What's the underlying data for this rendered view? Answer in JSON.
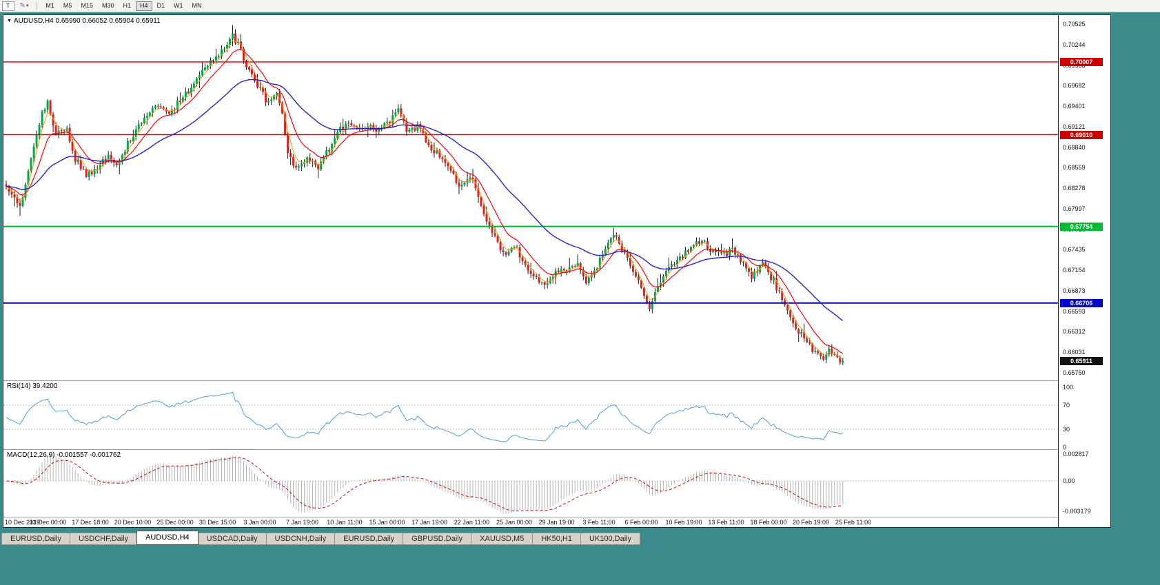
{
  "toolbar": {
    "t_button": "T",
    "pen_icon": "✎",
    "caret_icon": "▾",
    "timeframes": [
      "M1",
      "M5",
      "M15",
      "M30",
      "H1",
      "H4",
      "D1",
      "W1",
      "MN"
    ],
    "active_timeframe": "H4"
  },
  "chart": {
    "title_marker": "▼",
    "title": "AUDUSD,H4 0.65990 0.66052 0.65904 0.65911",
    "price_ticks": [
      "0.70525",
      "0.70244",
      "0.69963",
      "0.69682",
      "0.69401",
      "0.69121",
      "0.68840",
      "0.68559",
      "0.68278",
      "0.67997",
      "0.67716",
      "0.67435",
      "0.67154",
      "0.66873",
      "0.66593",
      "0.66312",
      "0.66031",
      "0.65750"
    ],
    "levels": [
      {
        "price": 0.70007,
        "label": "0.70007",
        "color": "#cc0000",
        "width": 1.4
      },
      {
        "price": 0.6901,
        "label": "0.69010",
        "color": "#cc0000",
        "width": 1.4
      },
      {
        "price": 0.67754,
        "label": "0.67754",
        "color": "#00bb33",
        "width": 2
      },
      {
        "price": 0.66706,
        "label": "0.66706",
        "color": "#0000cc",
        "width": 2
      }
    ],
    "current_price": {
      "label": "0.65911",
      "value": 0.65911
    }
  },
  "rsi": {
    "title": "RSI(14) 39.4200",
    "ticks": [
      "100",
      "70",
      "30",
      "0"
    ],
    "levels": [
      70,
      30
    ],
    "last_value": 39.42
  },
  "macd": {
    "title": "MACD(12,26,9) -0.001557 -0.001762",
    "ticks": [
      "0.002817",
      "0.00",
      "-0.003179"
    ],
    "last_main": -0.001557,
    "last_signal": -0.001762
  },
  "tabs": [
    {
      "label": "EURUSD,Daily",
      "active": false
    },
    {
      "label": "USDCHF,Daily",
      "active": false
    },
    {
      "label": "AUDUSD,H4",
      "active": true
    },
    {
      "label": "USDCAD,Daily",
      "active": false
    },
    {
      "label": "USDCNH,Daily",
      "active": false
    },
    {
      "label": "EURUSD,Daily",
      "active": false
    },
    {
      "label": "GBPUSD,Daily",
      "active": false
    },
    {
      "label": "XAUUSD,M5",
      "active": false
    },
    {
      "label": "HK50,H1",
      "active": false
    },
    {
      "label": "UK100,Daily",
      "active": false
    }
  ],
  "colors": {
    "bull": "#00a94f",
    "bear": "#e02020",
    "wick": "#1a1a1a",
    "rsi_line": "#4a9ede",
    "macd_hist": "#b4b4b4",
    "macd_signal": "#e00000",
    "current_badge": "#111111",
    "background_teal": "#3a8b8b"
  },
  "chart_data": {
    "type": "candlestick",
    "symbol": "AUDUSD",
    "timeframe": "H4",
    "last_ohlc": {
      "open": "0.65990",
      "high": "0.66052",
      "low": "0.65904",
      "close": "0.65911"
    },
    "price_axis_range": [
      0.6575,
      0.70525
    ],
    "candle_count": 304,
    "horizontal_levels": [
      0.70007,
      0.6901,
      0.67754,
      0.66706
    ],
    "price_path": [
      [
        0,
        0.6828
      ],
      [
        3,
        0.6812
      ],
      [
        5,
        0.68
      ],
      [
        9,
        0.6872
      ],
      [
        13,
        0.6928
      ],
      [
        15,
        0.6945
      ],
      [
        18,
        0.6902
      ],
      [
        22,
        0.6908
      ],
      [
        25,
        0.6868
      ],
      [
        29,
        0.6846
      ],
      [
        33,
        0.6856
      ],
      [
        37,
        0.6872
      ],
      [
        40,
        0.6856
      ],
      [
        44,
        0.689
      ],
      [
        48,
        0.6912
      ],
      [
        52,
        0.6934
      ],
      [
        55,
        0.694
      ],
      [
        59,
        0.6926
      ],
      [
        63,
        0.695
      ],
      [
        67,
        0.6962
      ],
      [
        70,
        0.6986
      ],
      [
        74,
        0.7002
      ],
      [
        78,
        0.7016
      ],
      [
        82,
        0.7036
      ],
      [
        84,
        0.7026
      ],
      [
        87,
        0.6996
      ],
      [
        90,
        0.6976
      ],
      [
        94,
        0.6948
      ],
      [
        98,
        0.6956
      ],
      [
        100,
        0.693
      ],
      [
        102,
        0.6872
      ],
      [
        105,
        0.6856
      ],
      [
        109,
        0.6866
      ],
      [
        113,
        0.6856
      ],
      [
        117,
        0.6882
      ],
      [
        120,
        0.6906
      ],
      [
        124,
        0.6916
      ],
      [
        128,
        0.6906
      ],
      [
        132,
        0.6912
      ],
      [
        135,
        0.6906
      ],
      [
        139,
        0.692
      ],
      [
        142,
        0.6936
      ],
      [
        145,
        0.6906
      ],
      [
        149,
        0.6912
      ],
      [
        153,
        0.6886
      ],
      [
        157,
        0.6872
      ],
      [
        160,
        0.6856
      ],
      [
        164,
        0.6832
      ],
      [
        168,
        0.6846
      ],
      [
        170,
        0.6826
      ],
      [
        173,
        0.6792
      ],
      [
        177,
        0.6762
      ],
      [
        180,
        0.6736
      ],
      [
        184,
        0.6752
      ],
      [
        188,
        0.6722
      ],
      [
        192,
        0.6706
      ],
      [
        195,
        0.6692
      ],
      [
        199,
        0.6716
      ],
      [
        203,
        0.6712
      ],
      [
        207,
        0.6726
      ],
      [
        210,
        0.6696
      ],
      [
        213,
        0.6712
      ],
      [
        217,
        0.6746
      ],
      [
        220,
        0.6766
      ],
      [
        223,
        0.6742
      ],
      [
        227,
        0.6716
      ],
      [
        230,
        0.6692
      ],
      [
        233,
        0.6666
      ],
      [
        237,
        0.67
      ],
      [
        240,
        0.6716
      ],
      [
        244,
        0.6732
      ],
      [
        248,
        0.6746
      ],
      [
        252,
        0.6756
      ],
      [
        255,
        0.6742
      ],
      [
        259,
        0.6736
      ],
      [
        263,
        0.6742
      ],
      [
        267,
        0.6722
      ],
      [
        270,
        0.6706
      ],
      [
        274,
        0.6722
      ],
      [
        278,
        0.67
      ],
      [
        282,
        0.6666
      ],
      [
        285,
        0.6642
      ],
      [
        289,
        0.6622
      ],
      [
        293,
        0.6602
      ],
      [
        296,
        0.6589
      ],
      [
        298,
        0.6606
      ],
      [
        300,
        0.6598
      ],
      [
        303,
        0.65911
      ]
    ],
    "indicators": {
      "rsi": {
        "period": 14,
        "last_value": 39.42,
        "levels": [
          70,
          30
        ]
      },
      "macd": {
        "fast": 12,
        "slow": 26,
        "signal": 9,
        "last_main": -0.001557,
        "last_signal": -0.001762
      },
      "moving_averages": [
        {
          "period": 4,
          "color": "#ff9900",
          "width": 1
        },
        {
          "period": 11,
          "color": "#ff0000",
          "width": 1.2
        },
        {
          "period": 40,
          "color": "#2323cc",
          "width": 1.4
        }
      ]
    },
    "time_labels": [
      "10 Dec 2019",
      "13 Dec 00:00",
      "17 Dec 18:00",
      "20 Dec 10:00",
      "25 Dec 00:00",
      "30 Dec 15:00",
      "3 Jan 00:00",
      "7 Jan 19:00",
      "10 Jan 11:00",
      "15 Jan 00:00",
      "17 Jan 19:00",
      "22 Jan 11:00",
      "25 Jan 00:00",
      "29 Jan 19:00",
      "3 Feb 11:00",
      "6 Feb 00:00",
      "10 Feb 19:00",
      "13 Feb 11:00",
      "18 Feb 00:00",
      "20 Feb 19:00",
      "25 Feb 11:00"
    ]
  }
}
